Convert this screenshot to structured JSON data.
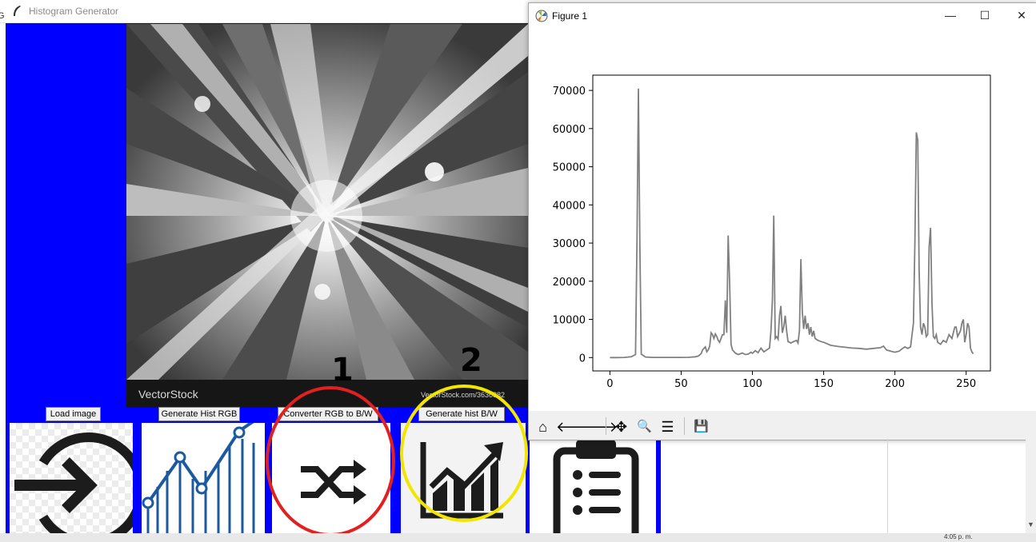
{
  "main_window": {
    "title": "Histogram Generator",
    "edge_label": "G"
  },
  "image_panel": {
    "watermark_brand": "VectorStock",
    "watermark_url": "VectorStock.com/3636882"
  },
  "buttons": [
    {
      "label": "Load image",
      "icon": "login-arrow-icon"
    },
    {
      "label": "Generate Hist RGB",
      "icon": "line-chart-icon"
    },
    {
      "label": "Converter RGB to B/W",
      "icon": "shuffle-icon"
    },
    {
      "label": "Generate hist B/W",
      "icon": "growth-chart-icon"
    },
    {
      "label": "",
      "icon": "clipboard-list-icon"
    }
  ],
  "annotations": [
    {
      "text": "1",
      "color": "#e32020"
    },
    {
      "text": "2",
      "color": "#f2e600"
    }
  ],
  "figure_window": {
    "title": "Figure 1",
    "controls": {
      "minimize": "—",
      "maximize": "☐",
      "close": "✕"
    },
    "toolbar": [
      {
        "icon": "home-icon",
        "glyph": "⌂"
      },
      {
        "icon": "back-arrow-icon",
        "glyph": "🡐"
      },
      {
        "icon": "forward-arrow-icon",
        "glyph": "🡒"
      },
      {
        "icon": "pan-icon",
        "glyph": "✥"
      },
      {
        "icon": "zoom-icon",
        "glyph": "🔍"
      },
      {
        "icon": "configure-subplots-icon",
        "glyph": "☰"
      },
      {
        "icon": "save-icon",
        "glyph": "💾"
      }
    ]
  },
  "taskbar": {
    "clock": "4:05 p. m."
  },
  "chart_data": {
    "type": "line",
    "xlim": [
      -12,
      267
    ],
    "ylim": [
      -3500,
      74000
    ],
    "xticks": [
      0,
      50,
      100,
      150,
      200,
      250
    ],
    "yticks": [
      0,
      10000,
      20000,
      30000,
      40000,
      50000,
      60000,
      70000
    ],
    "grid": false,
    "line_color": "#808080",
    "points": [
      [
        0,
        0
      ],
      [
        5,
        0
      ],
      [
        10,
        50
      ],
      [
        15,
        200
      ],
      [
        18,
        800
      ],
      [
        19,
        30000
      ],
      [
        20,
        70500
      ],
      [
        21,
        30000
      ],
      [
        22,
        900
      ],
      [
        25,
        150
      ],
      [
        30,
        50
      ],
      [
        40,
        30
      ],
      [
        50,
        30
      ],
      [
        55,
        60
      ],
      [
        60,
        200
      ],
      [
        62,
        400
      ],
      [
        64,
        1000
      ],
      [
        65,
        2000
      ],
      [
        67,
        2800
      ],
      [
        68,
        1500
      ],
      [
        69,
        2000
      ],
      [
        70,
        3000
      ],
      [
        71,
        6500
      ],
      [
        72,
        6000
      ],
      [
        73,
        5000
      ],
      [
        74,
        6200
      ],
      [
        75,
        5500
      ],
      [
        76,
        4500
      ],
      [
        77,
        4000
      ],
      [
        78,
        5000
      ],
      [
        79,
        6000
      ],
      [
        80,
        6000
      ],
      [
        81,
        15000
      ],
      [
        82,
        6500
      ],
      [
        83,
        32000
      ],
      [
        84,
        20000
      ],
      [
        85,
        3500
      ],
      [
        86,
        2000
      ],
      [
        88,
        1200
      ],
      [
        90,
        800
      ],
      [
        93,
        1200
      ],
      [
        95,
        800
      ],
      [
        97,
        900
      ],
      [
        99,
        1400
      ],
      [
        100,
        1100
      ],
      [
        102,
        1800
      ],
      [
        104,
        1300
      ],
      [
        106,
        2500
      ],
      [
        108,
        1500
      ],
      [
        110,
        2000
      ],
      [
        112,
        2500
      ],
      [
        113,
        7000
      ],
      [
        114,
        15000
      ],
      [
        115,
        37200
      ],
      [
        116,
        5000
      ],
      [
        117,
        5500
      ],
      [
        118,
        4800
      ],
      [
        119,
        11000
      ],
      [
        120,
        13500
      ],
      [
        121,
        6500
      ],
      [
        122,
        8000
      ],
      [
        123,
        11000
      ],
      [
        124,
        7000
      ],
      [
        125,
        4200
      ],
      [
        127,
        3800
      ],
      [
        129,
        4200
      ],
      [
        131,
        4500
      ],
      [
        132,
        3800
      ],
      [
        133,
        7000
      ],
      [
        134,
        25800
      ],
      [
        135,
        12000
      ],
      [
        136,
        7500
      ],
      [
        137,
        11000
      ],
      [
        138,
        7500
      ],
      [
        139,
        9000
      ],
      [
        140,
        6000
      ],
      [
        141,
        8000
      ],
      [
        142,
        5500
      ],
      [
        143,
        7000
      ],
      [
        144,
        5000
      ],
      [
        146,
        4500
      ],
      [
        148,
        4200
      ],
      [
        150,
        4000
      ],
      [
        155,
        3200
      ],
      [
        160,
        2900
      ],
      [
        165,
        2700
      ],
      [
        170,
        2500
      ],
      [
        175,
        2400
      ],
      [
        180,
        2200
      ],
      [
        185,
        2400
      ],
      [
        190,
        2600
      ],
      [
        192,
        3000
      ],
      [
        194,
        2000
      ],
      [
        196,
        1800
      ],
      [
        198,
        1600
      ],
      [
        200,
        1400
      ],
      [
        203,
        1700
      ],
      [
        205,
        2300
      ],
      [
        207,
        2800
      ],
      [
        209,
        2400
      ],
      [
        211,
        2800
      ],
      [
        213,
        9000
      ],
      [
        214,
        30000
      ],
      [
        215,
        59000
      ],
      [
        216,
        57000
      ],
      [
        217,
        23000
      ],
      [
        218,
        8000
      ],
      [
        219,
        6000
      ],
      [
        220,
        9000
      ],
      [
        221,
        8000
      ],
      [
        222,
        5500
      ],
      [
        223,
        6000
      ],
      [
        224,
        29000
      ],
      [
        225,
        34000
      ],
      [
        226,
        14000
      ],
      [
        227,
        5500
      ],
      [
        228,
        5000
      ],
      [
        229,
        6000
      ],
      [
        230,
        4000
      ],
      [
        232,
        3500
      ],
      [
        234,
        4500
      ],
      [
        236,
        4000
      ],
      [
        238,
        6000
      ],
      [
        240,
        5000
      ],
      [
        242,
        8000
      ],
      [
        243,
        8000
      ],
      [
        244,
        5500
      ],
      [
        246,
        7000
      ],
      [
        247,
        9000
      ],
      [
        248,
        10000
      ],
      [
        249,
        4000
      ],
      [
        250,
        6000
      ],
      [
        251,
        9000
      ],
      [
        252,
        8000
      ],
      [
        253,
        2500
      ],
      [
        254,
        1500
      ],
      [
        255,
        1000
      ]
    ]
  }
}
